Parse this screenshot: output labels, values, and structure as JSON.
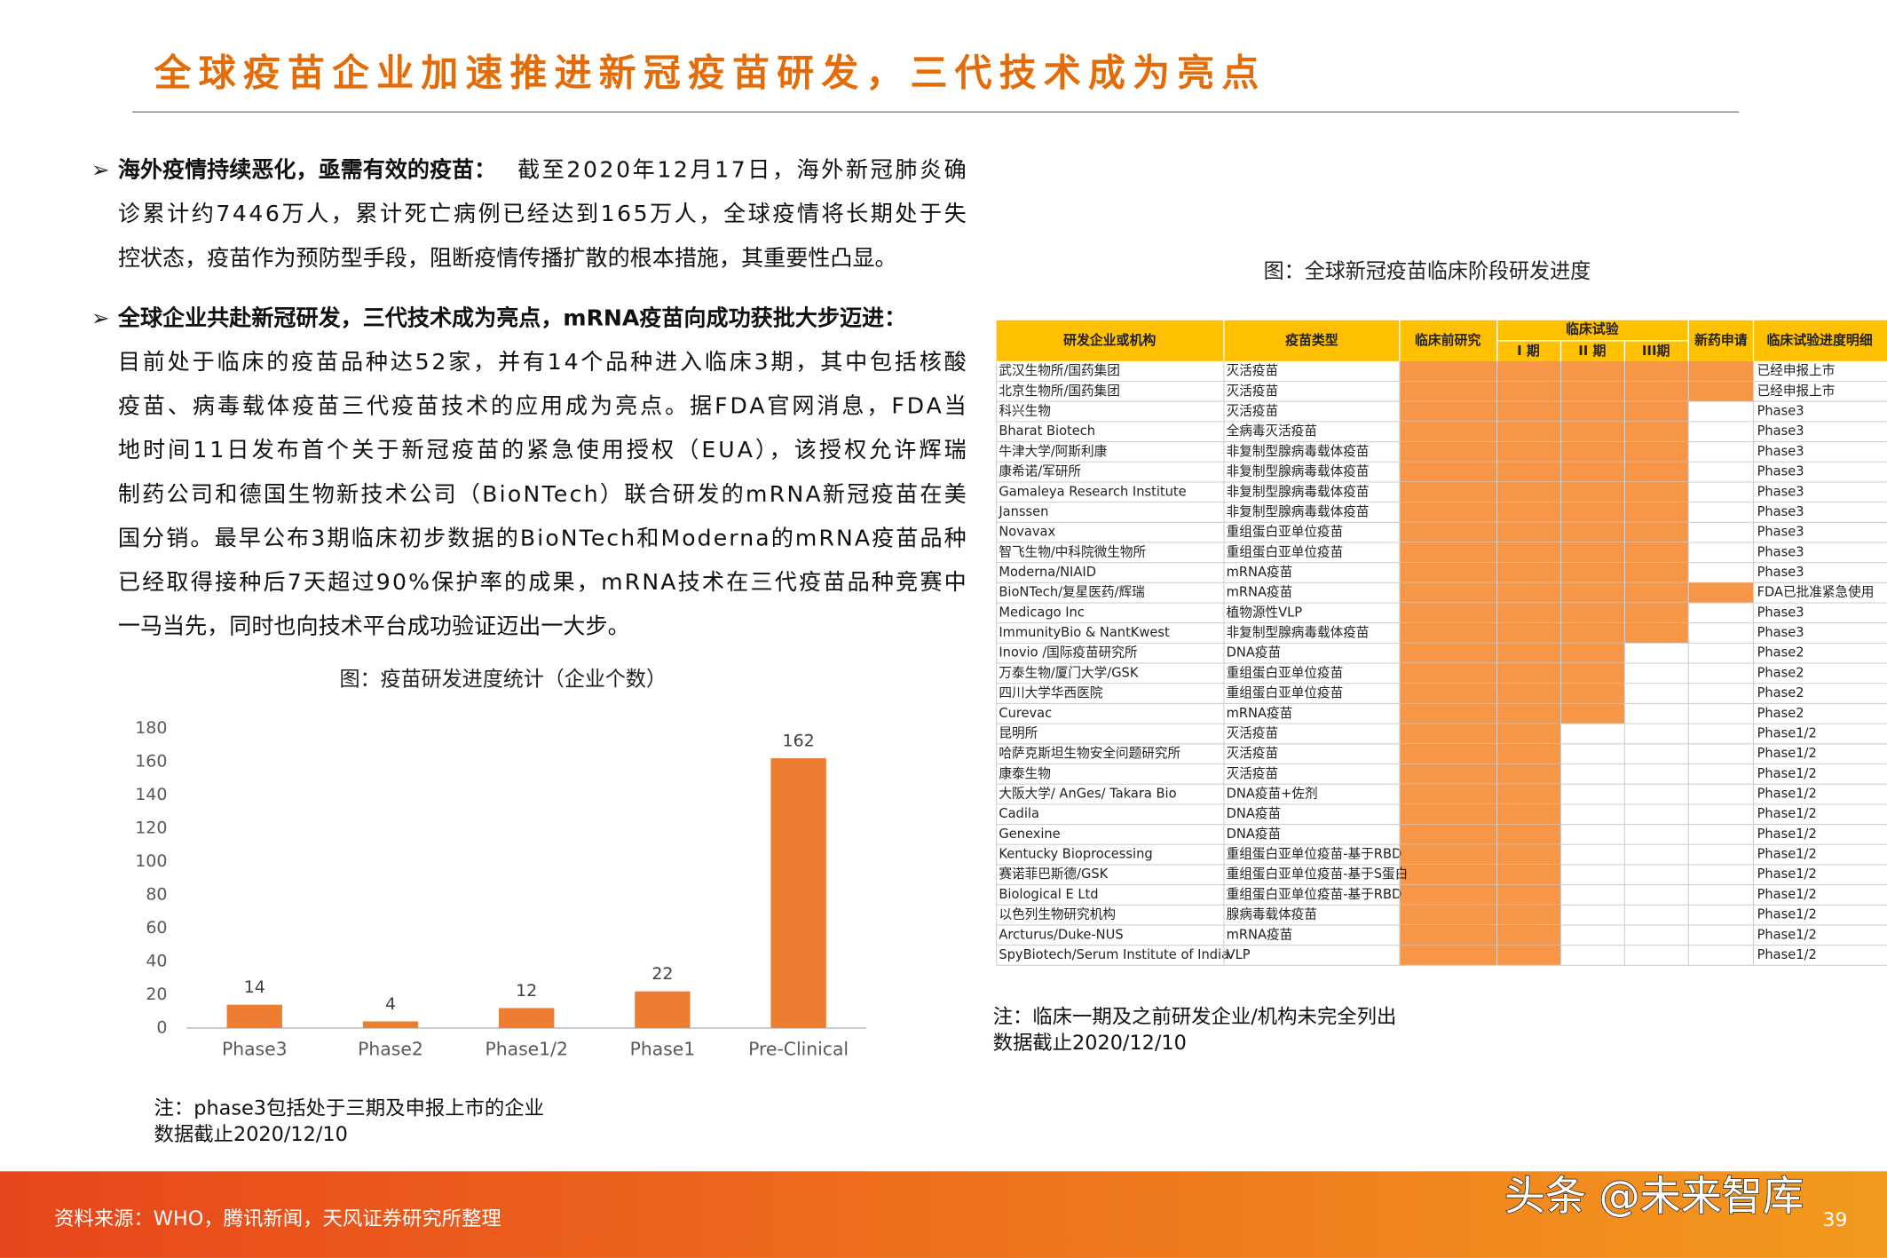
{
  "header": {
    "title": "全球疫苗企业加速推进新冠疫苗研发，三代技术成为亮点"
  },
  "bullets": [
    {
      "lead": "海外疫情持续恶化，亟需有效的疫苗：",
      "lines": [
        "截至2020年12月17日，海外新冠肺炎确",
        "诊累计约7446万人，累计死亡病例已经达到165万人，全球疫情将长期处于失",
        "控状态，疫苗作为预防型手段，阻断疫情传播扩散的根本措施，其重要性凸显。"
      ]
    },
    {
      "lead": "全球企业共赴新冠研发，三代技术成为亮点，mRNA疫苗向成功获批大步迈进：",
      "lines": [
        "目前处于临床的疫苗品种达52家，并有14个品种进入临床3期，其中包括核酸",
        "疫苗、病毒载体疫苗三代疫苗技术的应用成为亮点。据FDA官网消息，FDA当",
        "地时间11日发布首个关于新冠疫苗的紧急使用授权（EUA），该授权允许辉瑞",
        "制药公司和德国生物新技术公司（BioNTech）联合研发的mRNA新冠疫苗在美",
        "国分销。最早公布3期临床初步数据的BioNTech和Moderna的mRNA疫苗品种",
        "已经取得接种后7天超过90%保护率的成果，mRNA技术在三代疫苗品种竞赛中",
        "一马当先，同时也向技术平台成功验证迈出一大步。"
      ]
    }
  ],
  "chart_data": {
    "type": "bar",
    "title": "图：疫苗研发进度统计（企业个数）",
    "categories": [
      "Phase3",
      "Phase2",
      "Phase1/2",
      "Phase1",
      "Pre-Clinical"
    ],
    "values": [
      14,
      4,
      12,
      22,
      162
    ],
    "color": "#ed7d31",
    "ylim": [
      0,
      180
    ],
    "yticks": [
      0,
      20,
      40,
      60,
      80,
      100,
      120,
      140,
      160,
      180
    ],
    "notes": [
      "注：phase3包括处于三期及申报上市的企业",
      "数据截止2020/12/10"
    ]
  },
  "table": {
    "caption": "图：全球新冠疫苗临床阶段研发进度",
    "headers": [
      "研发企业或机构",
      "疫苗类型",
      "临床前研究",
      "临床试验",
      "I 期",
      "II 期",
      "III期",
      "新药申请",
      "临床试验进度明细"
    ],
    "rows": [
      [
        "武汉生物所/国药集团",
        "灭活疫苗",
        5,
        "已经申报上市"
      ],
      [
        "北京生物所/国药集团",
        "灭活疫苗",
        5,
        "已经申报上市"
      ],
      [
        "科兴生物",
        "灭活疫苗",
        4,
        "Phase3"
      ],
      [
        "Bharat Biotech",
        "全病毒灭活疫苗",
        4,
        "Phase3"
      ],
      [
        "牛津大学/阿斯利康",
        "非复制型腺病毒载体疫苗",
        4,
        "Phase3"
      ],
      [
        "康希诺/军研所",
        "非复制型腺病毒载体疫苗",
        4,
        "Phase3"
      ],
      [
        "Gamaleya Research Institute",
        "非复制型腺病毒载体疫苗",
        4,
        "Phase3"
      ],
      [
        "Janssen",
        "非复制型腺病毒载体疫苗",
        4,
        "Phase3"
      ],
      [
        "Novavax",
        "重组蛋白亚单位疫苗",
        4,
        "Phase3"
      ],
      [
        "智飞生物/中科院微生物所",
        "重组蛋白亚单位疫苗",
        4,
        "Phase3"
      ],
      [
        "Moderna/NIAID",
        "mRNA疫苗",
        4,
        "Phase3"
      ],
      [
        "BioNTech/复星医药/辉瑞",
        "mRNA疫苗",
        5,
        "FDA已批准紧急使用"
      ],
      [
        "Medicago Inc",
        "植物源性VLP",
        4,
        "Phase3"
      ],
      [
        "ImmunityBio & NantKwest",
        "非复制型腺病毒载体疫苗",
        4,
        "Phase3"
      ],
      [
        "Inovio /国际疫苗研究所",
        "DNA疫苗",
        3,
        "Phase2"
      ],
      [
        "万泰生物/厦门大学/GSK",
        "重组蛋白亚单位疫苗",
        3,
        "Phase2"
      ],
      [
        "四川大学华西医院",
        "重组蛋白亚单位疫苗",
        3,
        "Phase2"
      ],
      [
        "Curevac",
        "mRNA疫苗",
        3,
        "Phase2"
      ],
      [
        "昆明所",
        "灭活疫苗",
        2,
        "Phase1/2"
      ],
      [
        "哈萨克斯坦生物安全问题研究所",
        "灭活疫苗",
        2,
        "Phase1/2"
      ],
      [
        "康泰生物",
        "灭活疫苗",
        2,
        "Phase1/2"
      ],
      [
        "大阪大学/ AnGes/ Takara Bio",
        "DNA疫苗+佐剂",
        2,
        "Phase1/2"
      ],
      [
        "Cadila",
        "DNA疫苗",
        2,
        "Phase1/2"
      ],
      [
        "Genexine",
        "DNA疫苗",
        2,
        "Phase1/2"
      ],
      [
        "Kentucky Bioprocessing",
        "重组蛋白亚单位疫苗-基于RBD",
        2,
        "Phase1/2"
      ],
      [
        "赛诺菲巴斯德/GSK",
        "重组蛋白亚单位疫苗-基于S蛋白",
        2,
        "Phase1/2"
      ],
      [
        "Biological E Ltd",
        "重组蛋白亚单位疫苗-基于RBD",
        2,
        "Phase1/2"
      ],
      [
        "以色列生物研究机构",
        "腺病毒载体疫苗",
        2,
        "Phase1/2"
      ],
      [
        "Arcturus/Duke-NUS",
        "mRNA疫苗",
        2,
        "Phase1/2"
      ],
      [
        "SpyBiotech/Serum Institute of India",
        "VLP",
        2,
        "Phase1/2"
      ]
    ],
    "notes": [
      "注：临床一期及之前研发企业/机构未完全列出",
      "数据截止2020/12/10"
    ]
  },
  "footer": {
    "source": "资料来源：WHO，腾讯新闻，天风证券研究所整理",
    "watermark": "头条 @未来智库",
    "page": "39"
  }
}
